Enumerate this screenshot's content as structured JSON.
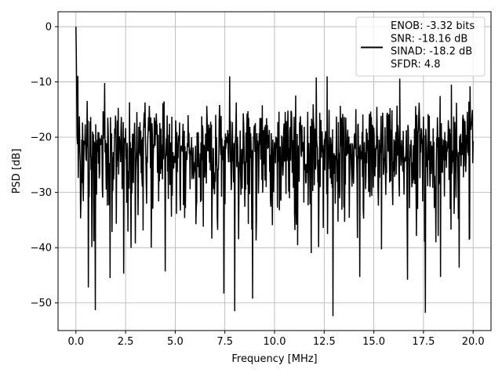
{
  "chart_data": {
    "type": "line",
    "xlabel": "Frequency [MHz]",
    "ylabel": "PSD [dB]",
    "xlim": [
      -0.9,
      20.9
    ],
    "ylim": [
      -55,
      2.7
    ],
    "xticks": [
      0.0,
      2.5,
      5.0,
      7.5,
      10.0,
      12.5,
      15.0,
      17.5,
      20.0
    ],
    "xtick_labels": [
      "0.0",
      "2.5",
      "5.0",
      "7.5",
      "10.0",
      "12.5",
      "15.0",
      "17.5",
      "20.0"
    ],
    "yticks": [
      0,
      -10,
      -20,
      -30,
      -40,
      -50
    ],
    "ytick_labels": [
      "0",
      "−10",
      "−20",
      "−30",
      "−40",
      "−50"
    ],
    "grid": true,
    "legend_position": "top-right",
    "legend": {
      "lines": [
        "ENOB: -3.32 bits",
        "SNR: -18.16 dB",
        "SINAD: -18.2 dB",
        "SFDR: 4.8"
      ]
    },
    "series": [
      {
        "color": "#000000",
        "x_range": [
          0,
          20
        ],
        "n_points": 1024,
        "peak": [
          0,
          0
        ],
        "noise_band": {
          "upper_typical": -13,
          "lower_typical": -35,
          "median": -21
        },
        "prominent_dips": [
          [
            0.62,
            -47.2
          ],
          [
            0.98,
            -51.3
          ],
          [
            1.72,
            -45.5
          ],
          [
            2.4,
            -44.7
          ],
          [
            4.5,
            -44.3
          ],
          [
            7.45,
            -48.3
          ],
          [
            8.0,
            -51.5
          ],
          [
            8.9,
            -49.2
          ],
          [
            12.95,
            -52.4
          ],
          [
            14.3,
            -45.3
          ],
          [
            16.7,
            -45.8
          ],
          [
            17.6,
            -51.8
          ],
          [
            18.35,
            -45.3
          ],
          [
            19.3,
            -43.6
          ]
        ],
        "prominent_peaks": [
          [
            0.1,
            -8.9
          ],
          [
            1.45,
            -10.2
          ],
          [
            7.75,
            -9.0
          ],
          [
            12.1,
            -9.2
          ],
          [
            12.65,
            -9.0
          ],
          [
            16.3,
            -9.4
          ],
          [
            18.9,
            -10.5
          ],
          [
            19.85,
            -10.8
          ]
        ]
      }
    ]
  }
}
